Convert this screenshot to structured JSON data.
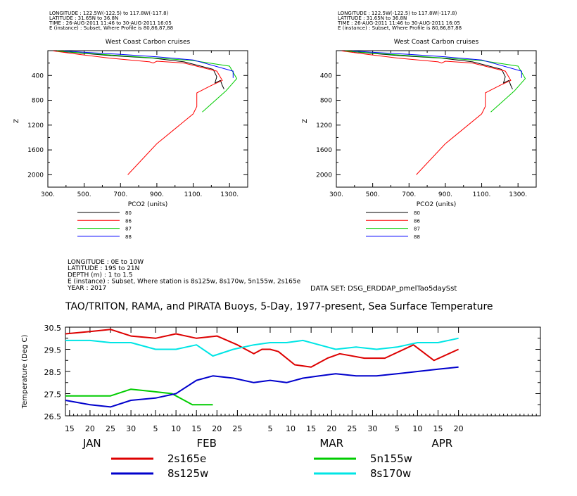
{
  "chart_data": [
    {
      "type": "line",
      "header": [
        "LONGITUDE : 122.5W(-122.5) to 117.8W(-117.8)",
        "LATITUDE : 31.65N to 36.8N",
        "TIME : 26-AUG-2011 11:46 to 30-AUG-2011 16:05",
        "E (instance) : Subset, Where Profile is 80,86,87,88"
      ],
      "title": "West Coast Carbon cruises",
      "xlabel": "PCO2 (units)",
      "ylabel": "Z",
      "xlim": [
        300,
        1400
      ],
      "ylim": [
        2200,
        0
      ],
      "xticks": [
        "300.",
        "500.",
        "700.",
        "900.",
        "1100.",
        "1300."
      ],
      "yticks": [
        "400",
        "800",
        "1200",
        "1600",
        "2000"
      ],
      "series": [
        {
          "name": "80",
          "color": "#000000",
          "x": [
            340,
            480,
            650,
            880,
            1050,
            1210,
            1230,
            1220,
            1250,
            1260,
            1270
          ],
          "z": [
            5,
            40,
            80,
            120,
            180,
            300,
            420,
            520,
            480,
            560,
            620
          ]
        },
        {
          "name": "86",
          "color": "#ff0000",
          "x": [
            330,
            470,
            640,
            860,
            880,
            900,
            1050,
            1230,
            1260,
            1200,
            1120,
            1120,
            1100,
            900,
            740
          ],
          "z": [
            5,
            60,
            120,
            180,
            200,
            170,
            200,
            330,
            480,
            560,
            680,
            900,
            1020,
            1500,
            2000
          ]
        },
        {
          "name": "87",
          "color": "#00cc00",
          "x": [
            350,
            500,
            700,
            900,
            1100,
            1300,
            1340,
            1280,
            1150
          ],
          "z": [
            5,
            40,
            80,
            120,
            160,
            250,
            450,
            650,
            990
          ]
        },
        {
          "name": "88",
          "color": "#0000ff",
          "x": [
            390,
            520,
            700,
            900,
            1100,
            1320,
            1320
          ],
          "z": [
            5,
            30,
            60,
            100,
            150,
            330,
            440
          ]
        }
      ]
    },
    {
      "type": "line",
      "header": [
        "LONGITUDE : 122.5W(-122.5) to 117.8W(-117.8)",
        "LATITUDE : 31.65N to 36.8N",
        "TIME : 26-AUG-2011 11:46 to 30-AUG-2011 16:05",
        "E (instance) : Subset, Where Profile is 80,86,87,88"
      ],
      "title": "West Coast Carbon cruises",
      "xlabel": "PCO2 (units)",
      "ylabel": "Z",
      "xlim": [
        300,
        1400
      ],
      "ylim": [
        2200,
        0
      ],
      "xticks": [
        "300.",
        "500.",
        "700.",
        "900.",
        "1100.",
        "1300."
      ],
      "yticks": [
        "400",
        "800",
        "1200",
        "1600",
        "2000"
      ],
      "series": [
        {
          "name": "80",
          "color": "#000000",
          "x": [
            340,
            480,
            650,
            880,
            1050,
            1210,
            1230,
            1220,
            1250,
            1260,
            1270
          ],
          "z": [
            5,
            40,
            80,
            120,
            180,
            300,
            420,
            520,
            480,
            560,
            620
          ]
        },
        {
          "name": "86",
          "color": "#ff0000",
          "x": [
            330,
            470,
            640,
            860,
            880,
            900,
            1050,
            1230,
            1260,
            1200,
            1120,
            1120,
            1100,
            900,
            740
          ],
          "z": [
            5,
            60,
            120,
            180,
            200,
            170,
            200,
            330,
            480,
            560,
            680,
            900,
            1020,
            1500,
            2000
          ]
        },
        {
          "name": "87",
          "color": "#00cc00",
          "x": [
            350,
            500,
            700,
            900,
            1100,
            1300,
            1340,
            1280,
            1150
          ],
          "z": [
            5,
            40,
            80,
            120,
            160,
            250,
            450,
            650,
            990
          ]
        },
        {
          "name": "88",
          "color": "#0000ff",
          "x": [
            390,
            520,
            700,
            900,
            1100,
            1320,
            1320
          ],
          "z": [
            5,
            30,
            60,
            100,
            150,
            330,
            440
          ]
        }
      ]
    },
    {
      "type": "line",
      "header": [
        "LONGITUDE : 0E to 10W",
        "LATITUDE : 19S to 21N",
        "DEPTH (m) : 1 to 1.5",
        "E (instance) : Subset, Where station is 8s125w, 8s170w, 5n155w, 2s165e",
        "YEAR : 2017"
      ],
      "dataset": "DATA SET: DSG_ERDDAP_pmelTao5daySst",
      "title": "TAO/TRITON, RAMA, and PIRATA Buoys, 5-Day, 1977-present, Sea Surface Temperature",
      "ylabel": "Temperature (Deg C)",
      "ylim": [
        26.5,
        30.5
      ],
      "yticks": [
        "30.5",
        "29.5",
        "28.5",
        "27.5",
        "26.5"
      ],
      "xlim": [
        14,
        130
      ],
      "xticks": [
        {
          "day": 15,
          "label": "15"
        },
        {
          "day": 20,
          "label": "20"
        },
        {
          "day": 25,
          "label": "25"
        },
        {
          "day": 30,
          "label": "30"
        },
        {
          "day": 36,
          "label": "5"
        },
        {
          "day": 41,
          "label": "10"
        },
        {
          "day": 46,
          "label": "15"
        },
        {
          "day": 51,
          "label": "20"
        },
        {
          "day": 56,
          "label": "25"
        },
        {
          "day": 64,
          "label": "5"
        },
        {
          "day": 69,
          "label": "10"
        },
        {
          "day": 74,
          "label": "15"
        },
        {
          "day": 79,
          "label": "20"
        },
        {
          "day": 84,
          "label": "25"
        },
        {
          "day": 89,
          "label": "30"
        },
        {
          "day": 95,
          "label": "5"
        },
        {
          "day": 100,
          "label": "10"
        },
        {
          "day": 105,
          "label": "15"
        },
        {
          "day": 110,
          "label": "20"
        }
      ],
      "months": [
        {
          "day": 20.5,
          "label": "JAN"
        },
        {
          "day": 48.5,
          "label": "FEB"
        },
        {
          "day": 79,
          "label": "MAR"
        },
        {
          "day": 106,
          "label": "APR"
        }
      ],
      "series": [
        {
          "name": "2s165e",
          "color": "#dd0000",
          "x": [
            14,
            20,
            25,
            30,
            36,
            41,
            46,
            51,
            56,
            60,
            62,
            64,
            66,
            70,
            74,
            78,
            81,
            87,
            92,
            99,
            104,
            110
          ],
          "y": [
            30.2,
            30.3,
            30.4,
            30.1,
            30.0,
            30.2,
            30.0,
            30.1,
            29.7,
            29.3,
            29.5,
            29.5,
            29.4,
            28.8,
            28.7,
            29.1,
            29.3,
            29.1,
            29.1,
            29.7,
            29.0,
            29.5
          ]
        },
        {
          "name": "5n155w",
          "color": "#00cc00",
          "x": [
            14,
            20,
            25,
            30,
            35,
            40,
            45,
            50
          ],
          "y": [
            27.4,
            27.4,
            27.4,
            27.7,
            27.6,
            27.5,
            27.0,
            27.0
          ]
        },
        {
          "name": "8s125w",
          "color": "#0000cc",
          "x": [
            14,
            20,
            25,
            30,
            36,
            41,
            46,
            50,
            55,
            60,
            64,
            68,
            72,
            76,
            80,
            85,
            90,
            95,
            100,
            105,
            110
          ],
          "y": [
            27.2,
            27.0,
            26.9,
            27.2,
            27.3,
            27.5,
            28.1,
            28.3,
            28.2,
            28.0,
            28.1,
            28.0,
            28.2,
            28.3,
            28.4,
            28.3,
            28.3,
            28.4,
            28.5,
            28.6,
            28.7
          ]
        },
        {
          "name": "8s170w",
          "color": "#00e5e5",
          "x": [
            14,
            20,
            25,
            30,
            36,
            41,
            46,
            50,
            55,
            60,
            64,
            68,
            72,
            76,
            80,
            85,
            90,
            95,
            100,
            105,
            110
          ],
          "y": [
            29.9,
            29.9,
            29.8,
            29.8,
            29.5,
            29.5,
            29.7,
            29.2,
            29.5,
            29.7,
            29.8,
            29.8,
            29.9,
            29.7,
            29.5,
            29.6,
            29.5,
            29.6,
            29.8,
            29.8,
            30.0
          ]
        }
      ],
      "legend": [
        {
          "name": "2s165e",
          "color": "#dd0000"
        },
        {
          "name": "5n155w",
          "color": "#00cc00"
        },
        {
          "name": "8s125w",
          "color": "#0000cc"
        },
        {
          "name": "8s170w",
          "color": "#00e5e5"
        }
      ]
    }
  ]
}
